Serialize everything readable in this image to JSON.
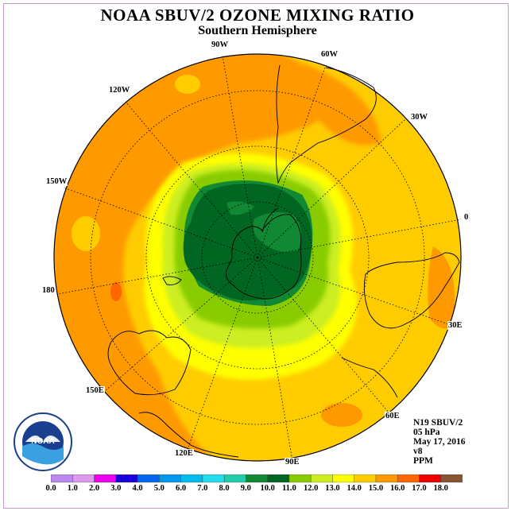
{
  "title": "NOAA SBUV/2 OZONE MIXING RATIO",
  "subtitle": "Southern Hemisphere",
  "info": {
    "satellite": "N19 SBUV/2",
    "level": "05 hPa",
    "date": "May 17, 2016",
    "version": "v8",
    "units": "PPM"
  },
  "logo": {
    "text": "NOAA",
    "ring_text": "NATIONAL OCEANIC AND ATMOSPHERIC ADMINISTRATION · U.S. DEPARTMENT OF COMMERCE"
  },
  "longitude_labels": [
    "0",
    "30E",
    "60E",
    "90E",
    "120E",
    "150E",
    "180",
    "150W",
    "120W",
    "90W",
    "60W",
    "30W"
  ],
  "colorbar": {
    "ticks": [
      "0.0",
      "1.0",
      "2.0",
      "3.0",
      "4.0",
      "5.0",
      "6.0",
      "7.0",
      "8.0",
      "9.0",
      "10.0",
      "11.0",
      "12.0",
      "13.0",
      "14.0",
      "15.0",
      "16.0",
      "17.0",
      "18.0"
    ],
    "colors": [
      "#bb88ee",
      "#dd99ee",
      "#ee00ee",
      "#1a00dd",
      "#0066ee",
      "#0099ee",
      "#00bbee",
      "#22ddee",
      "#22ccaa",
      "#118833",
      "#006622",
      "#88cc00",
      "#ccee22",
      "#ffff00",
      "#ffcc00",
      "#ff9900",
      "#ff6600",
      "#ee0000",
      "#885533"
    ]
  }
}
